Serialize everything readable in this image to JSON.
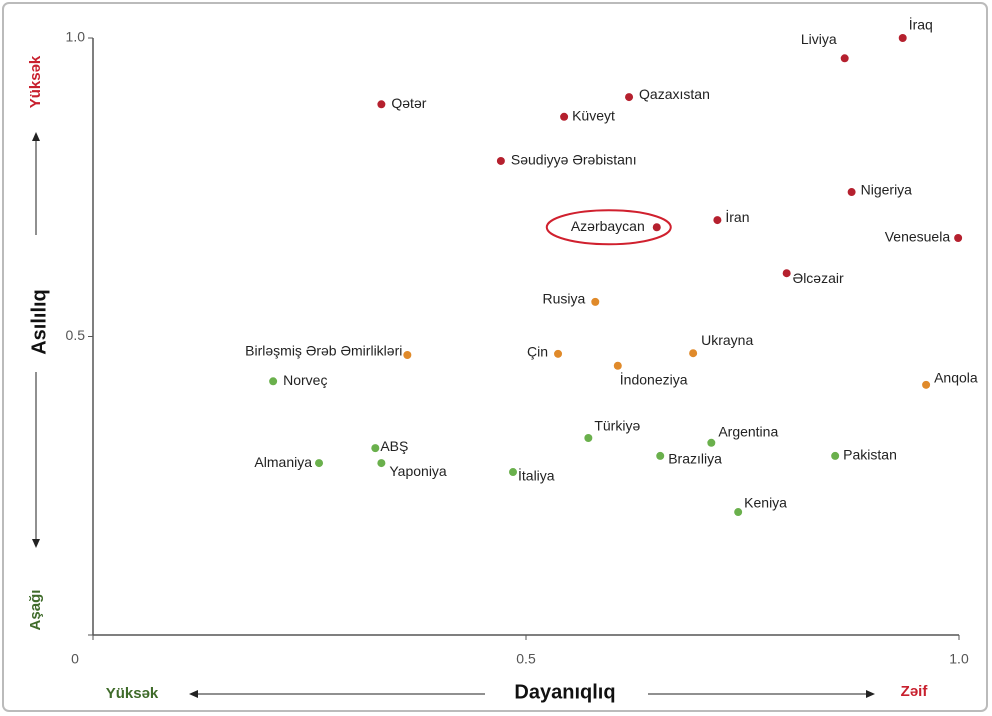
{
  "chart_data": {
    "type": "scatter",
    "ylabel": "Asılılıq",
    "y_high": "Yüksək",
    "y_low": "Aşağı",
    "xlabel": "Dayanıqlıq",
    "x_high": "Yüksək",
    "x_low": "Zəif",
    "xlim": [
      0,
      1
    ],
    "ylim": [
      0,
      1
    ],
    "xticks": [
      0,
      0.5,
      {
        "value": 1,
        "label": "1.0"
      }
    ],
    "yticks": [
      0,
      0.5,
      {
        "value": 1,
        "label": "1.0"
      }
    ],
    "series": [
      {
        "color": "#b5202e",
        "labels": [
          "İraq",
          "Liviya",
          "Qətər",
          "Qazaxıstan",
          "Küveyt",
          "Səudiyyə Ərəbistanı",
          "Nigeriya",
          "İran",
          "Azərbaycan",
          "Venesuela",
          "Əlcəzair"
        ],
        "x": [
          0.935,
          0.868,
          0.333,
          0.619,
          0.544,
          0.471,
          0.876,
          0.721,
          0.651,
          0.999,
          0.801
        ],
        "values": [
          1.0,
          0.966,
          0.889,
          0.901,
          0.868,
          0.794,
          0.742,
          0.695,
          0.683,
          0.665,
          0.606
        ]
      },
      {
        "color": "#e08a2a",
        "labels": [
          "Rusiya",
          "Birləşmiş Ərəb Əmirlikləri",
          "Çin",
          "Ukrayna",
          "İndoneziya",
          "Anqola"
        ],
        "x": [
          0.58,
          0.363,
          0.537,
          0.693,
          0.606,
          0.962
        ],
        "values": [
          0.558,
          0.469,
          0.471,
          0.472,
          0.451,
          0.419
        ]
      },
      {
        "color": "#6ab04c",
        "labels": [
          "Norveç",
          "Türkiyə",
          "ABŞ",
          "Argentina",
          "Almaniya",
          "Yaponiya",
          "Brazıliya",
          "Pakistan",
          "İtaliya",
          "Keniya"
        ],
        "x": [
          0.208,
          0.572,
          0.326,
          0.714,
          0.261,
          0.333,
          0.655,
          0.857,
          0.485,
          0.745
        ],
        "values": [
          0.425,
          0.33,
          0.313,
          0.322,
          0.288,
          0.288,
          0.3,
          0.3,
          0.273,
          0.206
        ]
      }
    ]
  }
}
